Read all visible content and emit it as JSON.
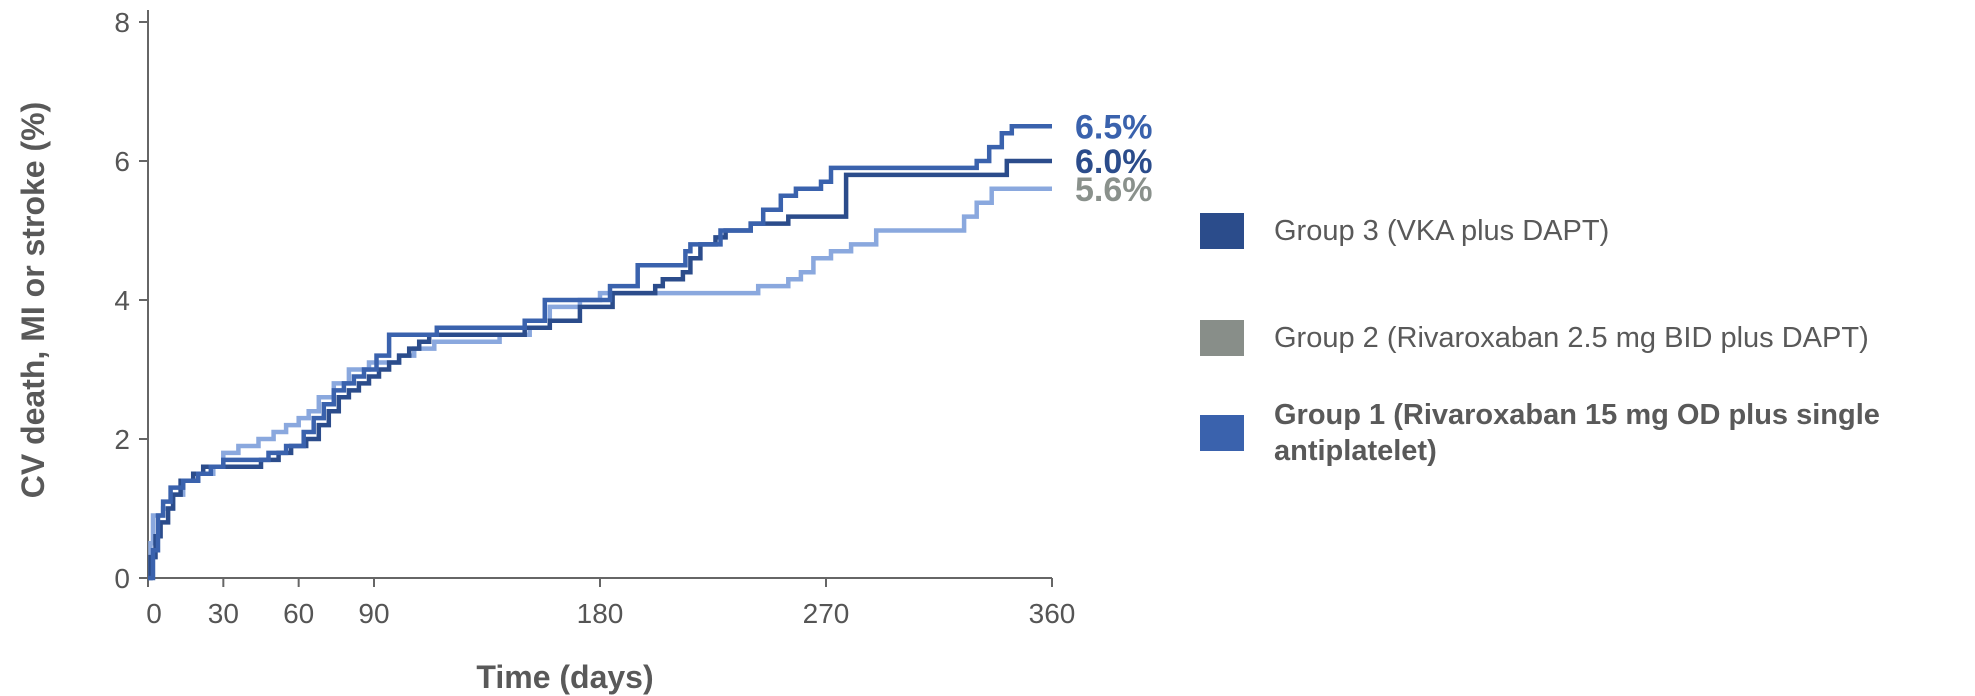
{
  "chart_data": {
    "type": "line",
    "title": "",
    "xlabel": "Time (days)",
    "ylabel": "CV death, MI or stroke (%)",
    "xlim": [
      0,
      360
    ],
    "ylim": [
      0,
      8
    ],
    "xticks": [
      0,
      30,
      60,
      90,
      180,
      270,
      360
    ],
    "yticks": [
      0,
      2,
      4,
      6,
      8
    ],
    "grid": false,
    "legend_position": "right",
    "series": [
      {
        "name": "Group 3 (VKA plus DAPT)",
        "color": "#2b4c8b",
        "end_label": "6.0%",
        "label_color": "#2b4c8b",
        "legend_bold": false,
        "points": [
          [
            0,
            0
          ],
          [
            1,
            0.3
          ],
          [
            3,
            0.6
          ],
          [
            5,
            0.8
          ],
          [
            8,
            1.0
          ],
          [
            10,
            1.2
          ],
          [
            13,
            1.4
          ],
          [
            18,
            1.5
          ],
          [
            22,
            1.6
          ],
          [
            30,
            1.6
          ],
          [
            45,
            1.7
          ],
          [
            52,
            1.8
          ],
          [
            57,
            1.9
          ],
          [
            63,
            2.0
          ],
          [
            68,
            2.2
          ],
          [
            72,
            2.4
          ],
          [
            76,
            2.6
          ],
          [
            80,
            2.7
          ],
          [
            84,
            2.8
          ],
          [
            88,
            2.9
          ],
          [
            92,
            3.0
          ],
          [
            96,
            3.1
          ],
          [
            100,
            3.2
          ],
          [
            104,
            3.3
          ],
          [
            108,
            3.4
          ],
          [
            112,
            3.5
          ],
          [
            140,
            3.5
          ],
          [
            150,
            3.6
          ],
          [
            160,
            3.7
          ],
          [
            172,
            3.9
          ],
          [
            185,
            4.1
          ],
          [
            202,
            4.2
          ],
          [
            205,
            4.3
          ],
          [
            213,
            4.4
          ],
          [
            216,
            4.6
          ],
          [
            220,
            4.8
          ],
          [
            226,
            4.9
          ],
          [
            230,
            5.0
          ],
          [
            240,
            5.1
          ],
          [
            255,
            5.2
          ],
          [
            273,
            5.2
          ],
          [
            278,
            5.8
          ],
          [
            338,
            5.8
          ],
          [
            342,
            6.0
          ],
          [
            360,
            6.0
          ]
        ]
      },
      {
        "name": "Group 2 (Rivaroxaban 2.5 mg BID plus DAPT)",
        "color": "#3a62ad",
        "end_label": "6.5%",
        "label_color": "#3a62ad",
        "legend_bold": false,
        "points": [
          [
            0,
            0
          ],
          [
            2,
            0.4
          ],
          [
            4,
            0.9
          ],
          [
            6,
            1.1
          ],
          [
            9,
            1.3
          ],
          [
            14,
            1.4
          ],
          [
            20,
            1.5
          ],
          [
            25,
            1.6
          ],
          [
            30,
            1.7
          ],
          [
            42,
            1.7
          ],
          [
            48,
            1.8
          ],
          [
            55,
            1.9
          ],
          [
            62,
            2.1
          ],
          [
            66,
            2.3
          ],
          [
            70,
            2.5
          ],
          [
            74,
            2.7
          ],
          [
            78,
            2.8
          ],
          [
            82,
            2.9
          ],
          [
            86,
            3.0
          ],
          [
            91,
            3.2
          ],
          [
            96,
            3.5
          ],
          [
            110,
            3.5
          ],
          [
            115,
            3.6
          ],
          [
            125,
            3.6
          ],
          [
            135,
            3.6
          ],
          [
            150,
            3.7
          ],
          [
            158,
            4.0
          ],
          [
            170,
            4.0
          ],
          [
            184,
            4.2
          ],
          [
            195,
            4.5
          ],
          [
            210,
            4.5
          ],
          [
            214,
            4.7
          ],
          [
            216,
            4.8
          ],
          [
            224,
            4.8
          ],
          [
            228,
            5.0
          ],
          [
            236,
            5.0
          ],
          [
            240,
            5.1
          ],
          [
            245,
            5.3
          ],
          [
            252,
            5.5
          ],
          [
            258,
            5.6
          ],
          [
            268,
            5.7
          ],
          [
            272,
            5.9
          ],
          [
            292,
            5.9
          ],
          [
            298,
            5.9
          ],
          [
            330,
            6.0
          ],
          [
            335,
            6.2
          ],
          [
            340,
            6.4
          ],
          [
            344,
            6.5
          ],
          [
            360,
            6.5
          ]
        ]
      },
      {
        "name": "Group 1 (Rivaroxaban 15 mg OD plus single antiplatelet)",
        "color": "#8aa8de",
        "end_label": "5.6%",
        "label_color": "#8a918c",
        "legend_bold": true,
        "points": [
          [
            0,
            0
          ],
          [
            1,
            0.5
          ],
          [
            2,
            0.9
          ],
          [
            6,
            1.0
          ],
          [
            10,
            1.2
          ],
          [
            14,
            1.4
          ],
          [
            20,
            1.5
          ],
          [
            26,
            1.6
          ],
          [
            30,
            1.8
          ],
          [
            36,
            1.9
          ],
          [
            44,
            2.0
          ],
          [
            50,
            2.1
          ],
          [
            55,
            2.2
          ],
          [
            60,
            2.3
          ],
          [
            64,
            2.4
          ],
          [
            68,
            2.6
          ],
          [
            74,
            2.8
          ],
          [
            80,
            3.0
          ],
          [
            88,
            3.1
          ],
          [
            100,
            3.2
          ],
          [
            106,
            3.3
          ],
          [
            114,
            3.4
          ],
          [
            130,
            3.4
          ],
          [
            140,
            3.5
          ],
          [
            152,
            3.6
          ],
          [
            160,
            3.9
          ],
          [
            172,
            4.0
          ],
          [
            180,
            4.1
          ],
          [
            240,
            4.1
          ],
          [
            243,
            4.2
          ],
          [
            255,
            4.3
          ],
          [
            260,
            4.4
          ],
          [
            265,
            4.6
          ],
          [
            272,
            4.7
          ],
          [
            280,
            4.8
          ],
          [
            290,
            5.0
          ],
          [
            320,
            5.0
          ],
          [
            325,
            5.2
          ],
          [
            330,
            5.4
          ],
          [
            336,
            5.6
          ],
          [
            360,
            5.6
          ]
        ]
      }
    ]
  },
  "legend": {
    "items": [
      {
        "label": "Group 3 (VKA plus DAPT)",
        "swatch": "#2b4c8b",
        "bold": false
      },
      {
        "label": "Group 2 (Rivaroxaban 2.5 mg BID plus DAPT)",
        "swatch": "#888e89",
        "bold": false
      },
      {
        "label": "Group 1 (Rivaroxaban 15 mg OD plus single antiplatelet)",
        "swatch": "#3a62ad",
        "bold": true
      }
    ]
  }
}
